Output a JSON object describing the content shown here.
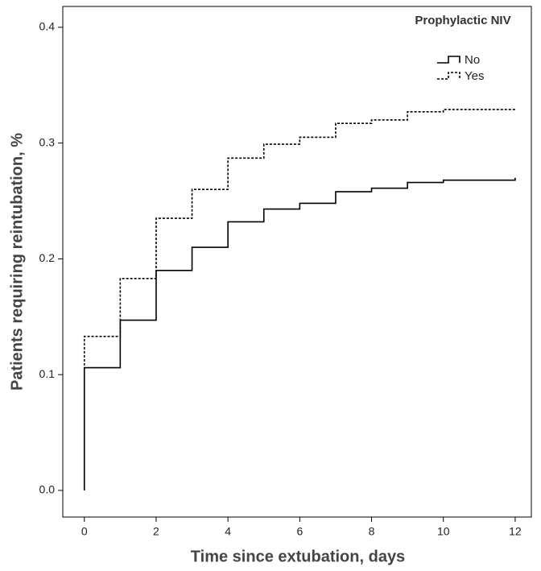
{
  "chart_data": {
    "type": "line",
    "step": "post",
    "xlabel": "Time since extubation, days",
    "ylabel": "Patients requiring reintubation, %",
    "legend_title": "Prophylactic NIV",
    "legend_position": "upper right",
    "grid": false,
    "x": [
      0,
      0,
      1,
      2,
      3,
      4,
      5,
      6,
      7,
      8,
      9,
      10,
      12
    ],
    "series": [
      {
        "name": "No",
        "color": "#000000",
        "dash": "none",
        "values": [
          0,
          0.106,
          0.147,
          0.19,
          0.21,
          0.232,
          0.243,
          0.248,
          0.258,
          0.261,
          0.266,
          0.268,
          0.27
        ]
      },
      {
        "name": "Yes",
        "color": "#000000",
        "dash": "3,2",
        "values": [
          0,
          0.133,
          0.183,
          0.235,
          0.26,
          0.287,
          0.299,
          0.305,
          0.317,
          0.32,
          0.327,
          0.329,
          0.33
        ]
      }
    ],
    "xlim": [
      -0.6,
      12.45
    ],
    "ylim": [
      -0.023,
      0.418
    ],
    "xticks": [
      0,
      2,
      4,
      6,
      8,
      10,
      12
    ],
    "yticks": [
      {
        "value": 0,
        "label": "0.0"
      },
      0.1,
      0.2,
      0.3,
      0.4
    ]
  }
}
